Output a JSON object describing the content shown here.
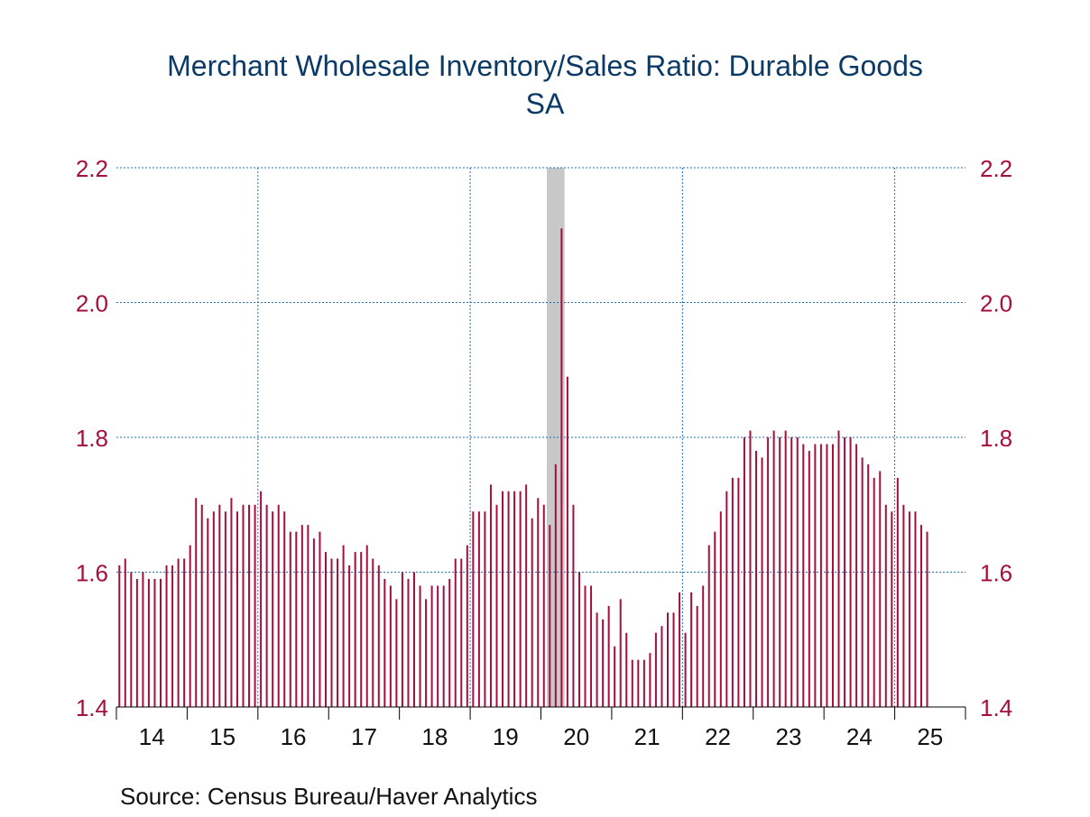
{
  "chart_data": {
    "type": "bar",
    "title": "Merchant Wholesale Inventory/Sales Ratio: Durable Goods",
    "subtitle": "SA",
    "xlabel": "",
    "ylabel": "",
    "ylim": [
      1.4,
      2.2
    ],
    "y_ticks": [
      "1.4",
      "1.6",
      "1.8",
      "2.0",
      "2.2"
    ],
    "y_axis_sides": "left and right",
    "x_tick_labels": [
      "14",
      "15",
      "16",
      "17",
      "18",
      "19",
      "20",
      "21",
      "22",
      "23",
      "24",
      "25"
    ],
    "x_gridlines_at_years": [
      "16",
      "19",
      "22",
      "25"
    ],
    "start_period": "2014-01",
    "frequency": "monthly",
    "recession_shading": {
      "from": "2020-02",
      "to": "2020-04"
    },
    "grid": true,
    "series": [
      {
        "values": [
          1.61,
          1.62,
          1.6,
          1.59,
          1.6,
          1.59,
          1.59,
          1.59,
          1.61,
          1.61,
          1.62,
          1.62,
          1.64,
          1.71,
          1.7,
          1.68,
          1.69,
          1.7,
          1.69,
          1.71,
          1.69,
          1.7,
          1.7,
          1.7,
          1.72,
          1.7,
          1.69,
          1.7,
          1.69,
          1.66,
          1.66,
          1.67,
          1.67,
          1.65,
          1.66,
          1.63,
          1.62,
          1.62,
          1.64,
          1.61,
          1.63,
          1.63,
          1.64,
          1.62,
          1.61,
          1.59,
          1.58,
          1.56,
          1.6,
          1.59,
          1.6,
          1.58,
          1.56,
          1.58,
          1.58,
          1.58,
          1.59,
          1.62,
          1.62,
          1.64,
          1.69,
          1.69,
          1.69,
          1.73,
          1.7,
          1.72,
          1.72,
          1.72,
          1.72,
          1.73,
          1.68,
          1.71,
          1.7,
          1.67,
          1.76,
          2.11,
          1.89,
          1.7,
          1.6,
          1.58,
          1.58,
          1.54,
          1.53,
          1.55,
          1.49,
          1.56,
          1.51,
          1.47,
          1.47,
          1.47,
          1.48,
          1.51,
          1.52,
          1.54,
          1.54,
          1.57,
          1.51,
          1.57,
          1.55,
          1.58,
          1.64,
          1.66,
          1.69,
          1.72,
          1.74,
          1.74,
          1.8,
          1.81,
          1.78,
          1.77,
          1.8,
          1.81,
          1.8,
          1.81,
          1.8,
          1.8,
          1.79,
          1.78,
          1.79,
          1.79,
          1.79,
          1.79,
          1.81,
          1.8,
          1.8,
          1.79,
          1.77,
          1.76,
          1.74,
          1.75,
          1.7,
          1.69,
          1.74,
          1.7,
          1.69,
          1.69,
          1.67,
          1.66
        ]
      }
    ],
    "colors": {
      "bars": "#a50f3c",
      "tick_labels": "#a50f3c",
      "grid": "#1f6fc0",
      "recession": "#c8c8c8",
      "title": "#0b3a66"
    }
  },
  "source": "Source:  Census Bureau/Haver Analytics"
}
